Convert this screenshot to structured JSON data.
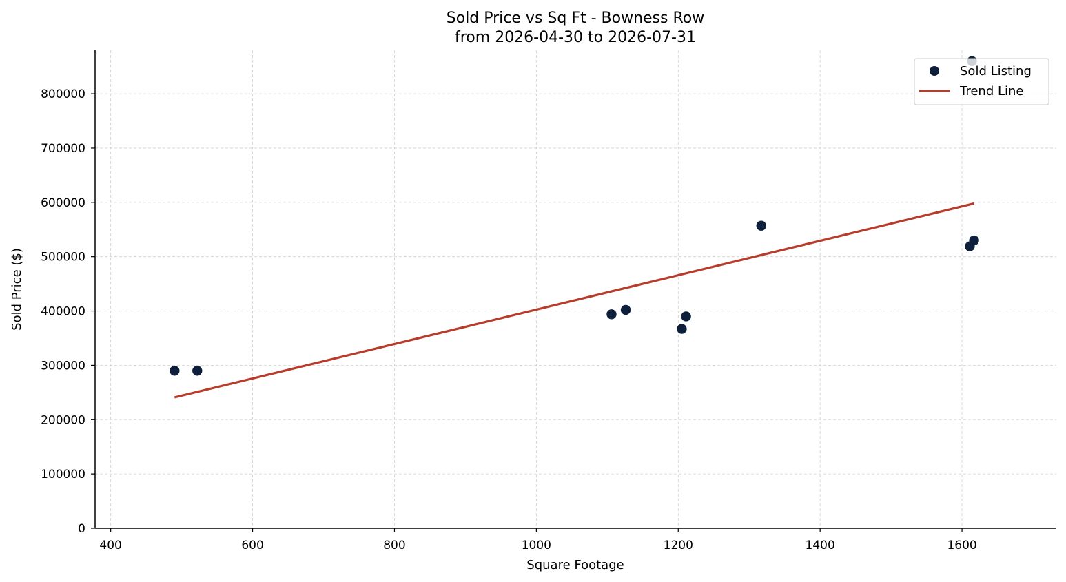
{
  "chart_data": {
    "type": "scatter",
    "title_line1": "Sold Price vs Sq Ft - Bowness Row",
    "title_line2": "from 2026-04-30 to 2026-07-31",
    "xlabel": "Square Footage",
    "ylabel": "Sold Price ($)",
    "xlim": [
      378,
      1733
    ],
    "ylim": [
      0,
      880000
    ],
    "x_ticks": [
      400,
      600,
      800,
      1000,
      1200,
      1400,
      1600
    ],
    "y_ticks": [
      0,
      100000,
      200000,
      300000,
      400000,
      500000,
      600000,
      700000,
      800000
    ],
    "grid": true,
    "legend_position": "top-right",
    "series": [
      {
        "name": "Sold Listing",
        "kind": "scatter",
        "color": "#0d1f3a",
        "points": [
          {
            "x": 490,
            "y": 290000
          },
          {
            "x": 522,
            "y": 290000
          },
          {
            "x": 1106,
            "y": 394000
          },
          {
            "x": 1126,
            "y": 402000
          },
          {
            "x": 1205,
            "y": 367000
          },
          {
            "x": 1211,
            "y": 390000
          },
          {
            "x": 1317,
            "y": 557000
          },
          {
            "x": 1611,
            "y": 519000
          },
          {
            "x": 1617,
            "y": 530000
          },
          {
            "x": 1614,
            "y": 860000
          }
        ]
      },
      {
        "name": "Trend Line",
        "kind": "line",
        "color": "#b83c2c",
        "points": [
          {
            "x": 490,
            "y": 241000
          },
          {
            "x": 1617,
            "y": 598000
          }
        ]
      }
    ]
  }
}
